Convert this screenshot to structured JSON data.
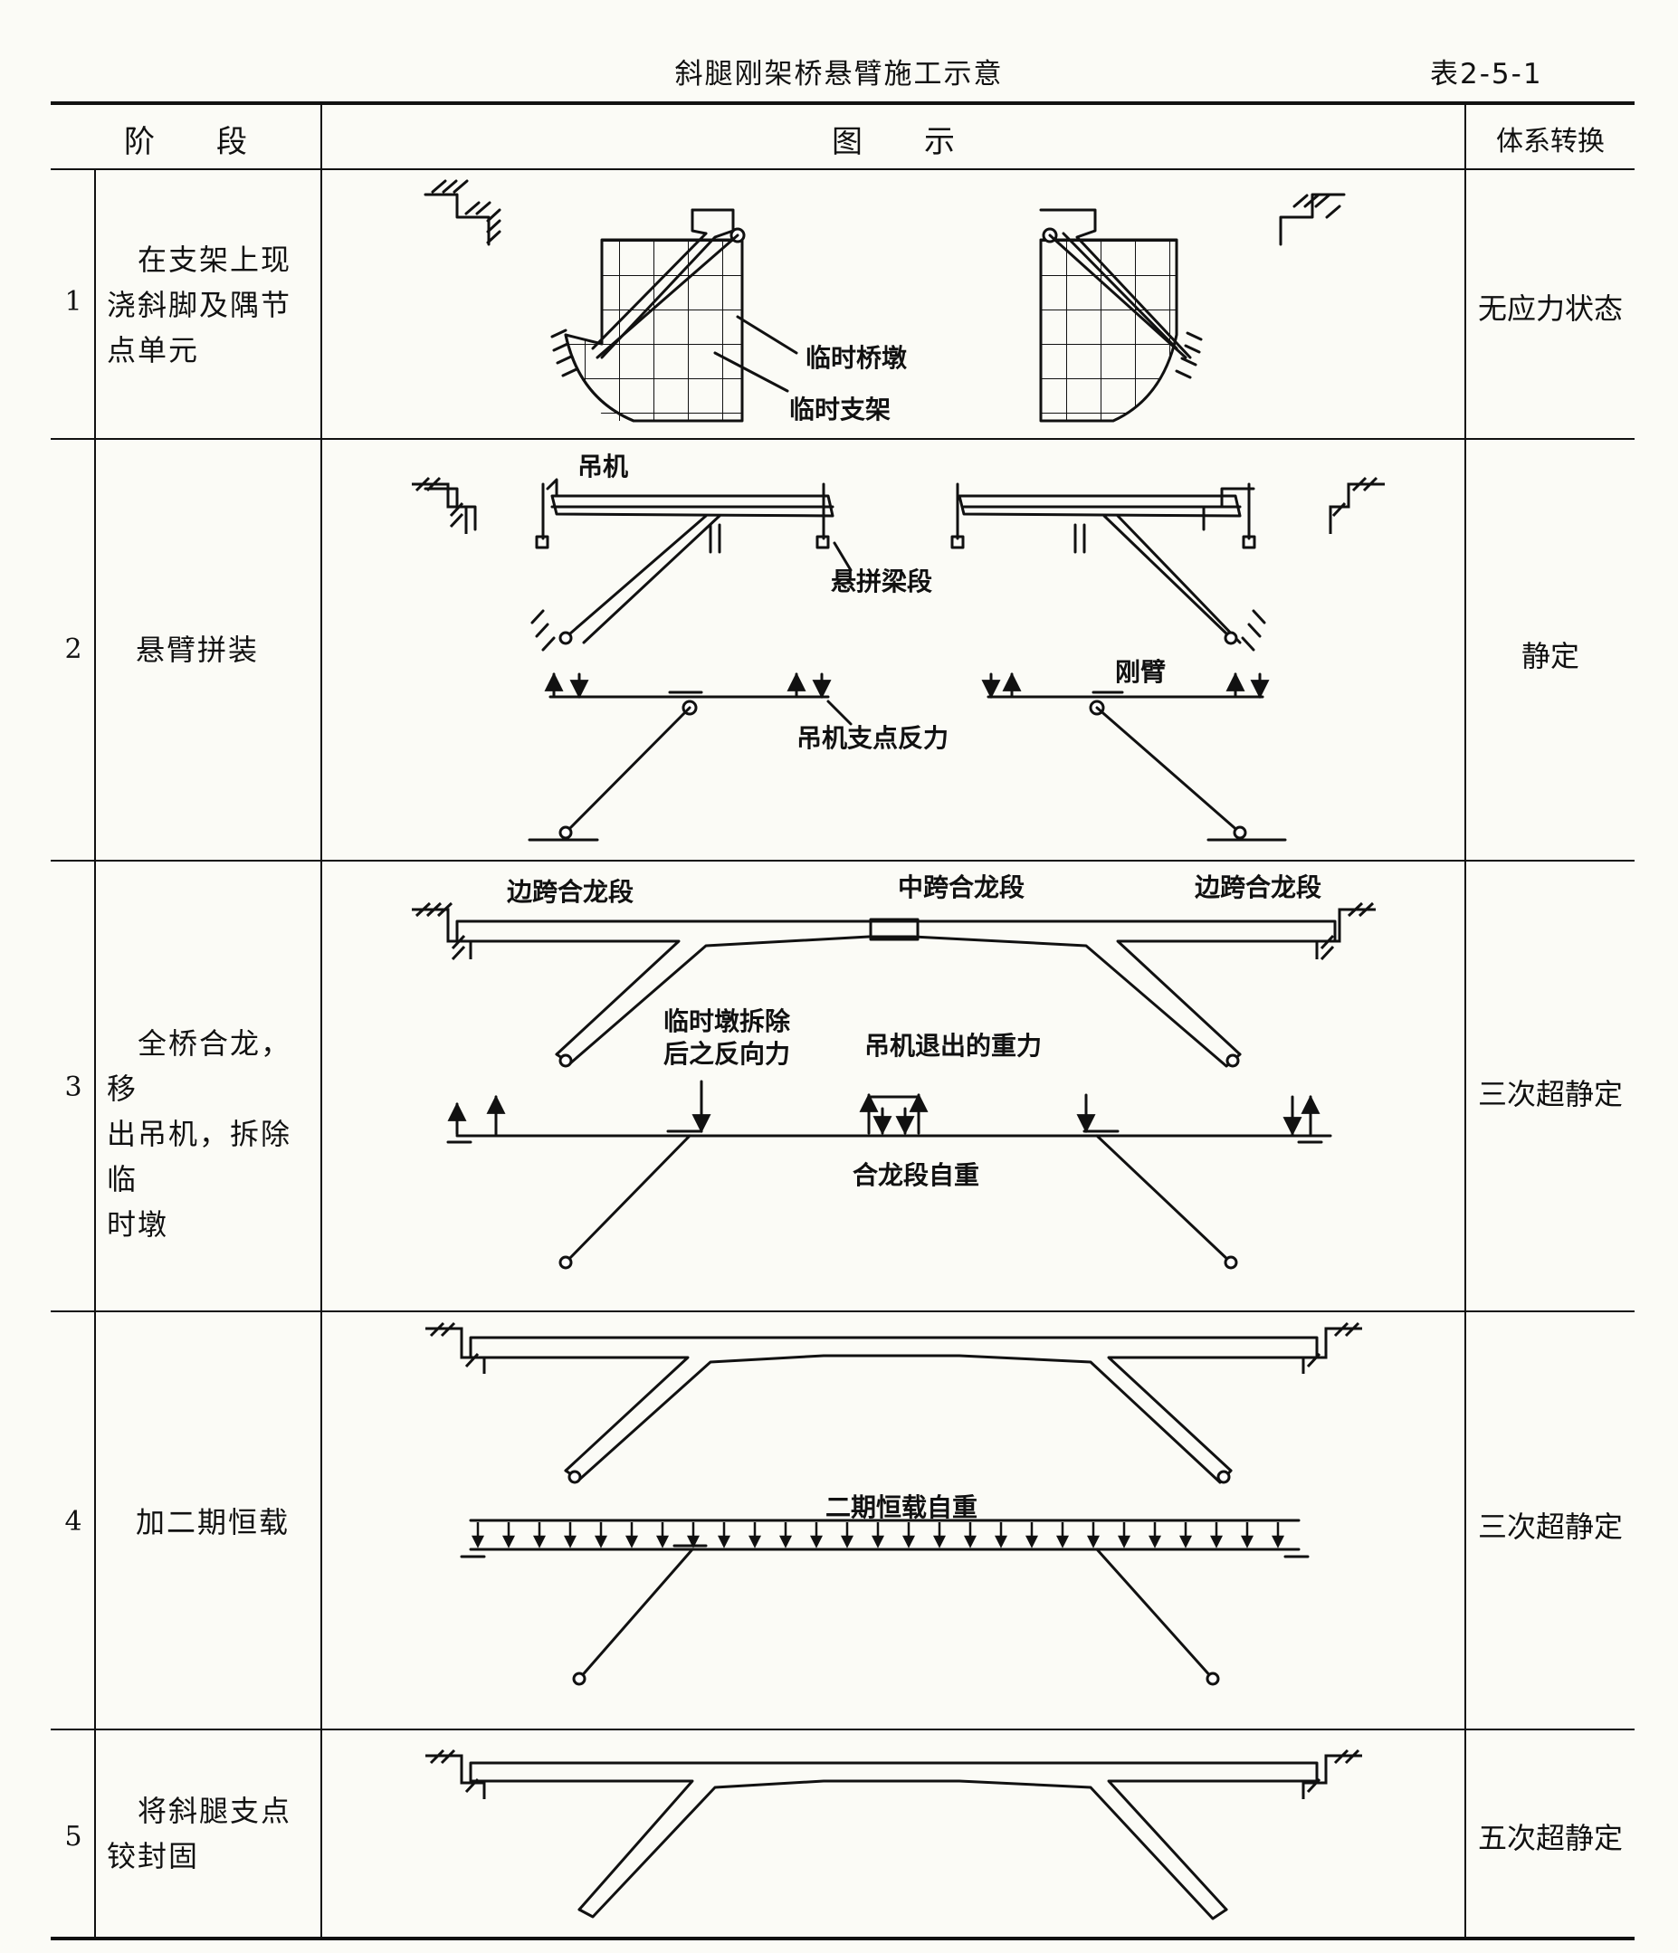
{
  "title": "斜腿刚架桥悬臂施工示意",
  "table_no": "表2-5-1",
  "headers": {
    "stage": "阶　　段",
    "figure": "图　　示",
    "system": "体系转换"
  },
  "rows": [
    {
      "no": "1",
      "stage_lines": [
        "　在支架上现",
        "浇斜脚及隅节",
        "点单元"
      ],
      "system": "无应力状态",
      "labels": {
        "pier": "临时桥墩",
        "support": "临时支架"
      }
    },
    {
      "no": "2",
      "stage_lines": [
        "悬臂拼装"
      ],
      "system": "静定",
      "labels": {
        "crane": "吊机",
        "segment": "悬拼梁段",
        "rigid_arm": "刚臂",
        "reaction": "吊机支点反力"
      }
    },
    {
      "no": "3",
      "stage_lines": [
        "　全桥合龙，移",
        "出吊机，拆除临",
        "时墩"
      ],
      "system": "三次超静定",
      "labels": {
        "side_closure_l": "边跨合龙段",
        "mid_closure": "中跨合龙段",
        "side_closure_r": "边跨合龙段",
        "removal_1": "临时墩拆除",
        "removal_2": "后之反向力",
        "crane_out": "吊机退出的重力",
        "closure_weight": "合龙段自重"
      }
    },
    {
      "no": "4",
      "stage_lines": [
        "加二期恒载"
      ],
      "system": "三次超静定",
      "labels": {
        "dead_load": "二期恒载自重"
      }
    },
    {
      "no": "5",
      "stage_lines": [
        "　将斜腿支点",
        "铰封固"
      ],
      "system": "五次超静定"
    }
  ]
}
